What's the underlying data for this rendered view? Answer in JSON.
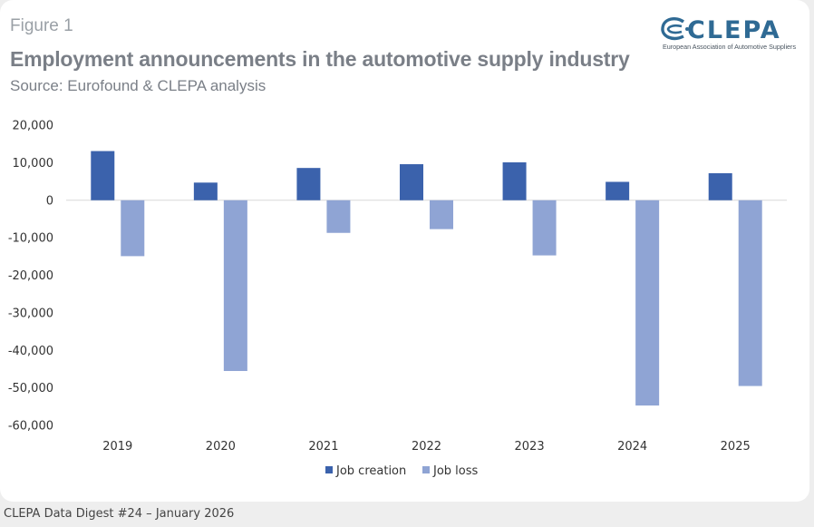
{
  "figure_label": "Figure 1",
  "logo": {
    "word": "CLEPA",
    "subtitle": "European Association of Automotive Suppliers",
    "icon": "clepa-logo-mark",
    "color": "#2f6a94"
  },
  "footer": "CLEPA Data Digest #24 – January 2026",
  "chart_data": {
    "type": "bar",
    "title": "Employment announcements in the automotive supply industry",
    "subtitle": "Source: Eurofound & CLEPA analysis",
    "xlabel": "",
    "ylabel": "",
    "categories": [
      "2019",
      "2020",
      "2021",
      "2022",
      "2023",
      "2024",
      "2025"
    ],
    "series": [
      {
        "name": "Job creation",
        "color": "#3b62ac",
        "values": [
          13100,
          4700,
          8600,
          9600,
          10100,
          4900,
          7200
        ]
      },
      {
        "name": "Job loss",
        "color": "#8fa4d4",
        "values": [
          -14900,
          -45500,
          -8700,
          -7700,
          -14700,
          -54700,
          -49500
        ]
      }
    ],
    "ylim": [
      -60000,
      20000
    ],
    "yticks": [
      20000,
      10000,
      0,
      -10000,
      -20000,
      -30000,
      -40000,
      -50000,
      -60000
    ],
    "ytick_labels": [
      "20,000",
      "10,000",
      "0",
      "-10,000",
      "-20,000",
      "-30,000",
      "-40,000",
      "-50,000",
      "-60,000"
    ],
    "grid": false,
    "legend_position": "bottom"
  }
}
